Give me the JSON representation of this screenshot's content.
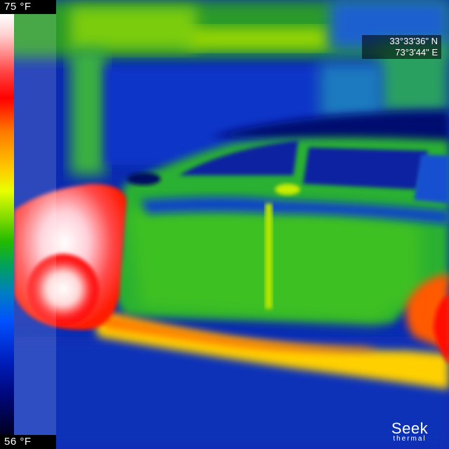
{
  "scale": {
    "max_label": "75 °F",
    "min_label": "56 °F"
  },
  "gps": {
    "latitude": "33°33'36\" N",
    "longitude": "73°3'44\" E"
  },
  "brand": {
    "name": "Seek",
    "subtitle": "thermal"
  },
  "colors": {
    "background_cold": "#0a1a6e",
    "hot": "#ff0000",
    "warm": "#ffcc00",
    "mid": "#22bb00",
    "cool": "#0050ff"
  },
  "icons": {
    "brand_logo": "seek-thermal-logo"
  }
}
